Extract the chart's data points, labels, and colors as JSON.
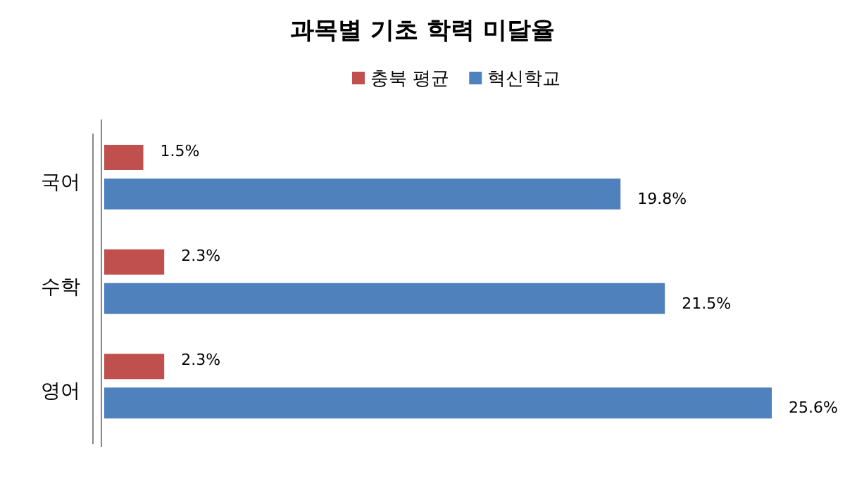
{
  "chart_data": {
    "type": "bar",
    "orientation": "horizontal",
    "title": "과목별 기초 학력 미달율",
    "categories": [
      "국어",
      "수학",
      "영어"
    ],
    "series": [
      {
        "name": "충북 평균",
        "color": "#c0504d",
        "values": [
          1.5,
          2.3,
          2.3
        ],
        "value_labels": [
          "1.5%",
          "2.3%",
          "2.3%"
        ]
      },
      {
        "name": "혁신학교",
        "color": "#4f81bd",
        "values": [
          19.8,
          21.5,
          25.6
        ],
        "value_labels": [
          "19.8%",
          "21.5%",
          "25.6%"
        ]
      }
    ],
    "legend": "top"
  }
}
